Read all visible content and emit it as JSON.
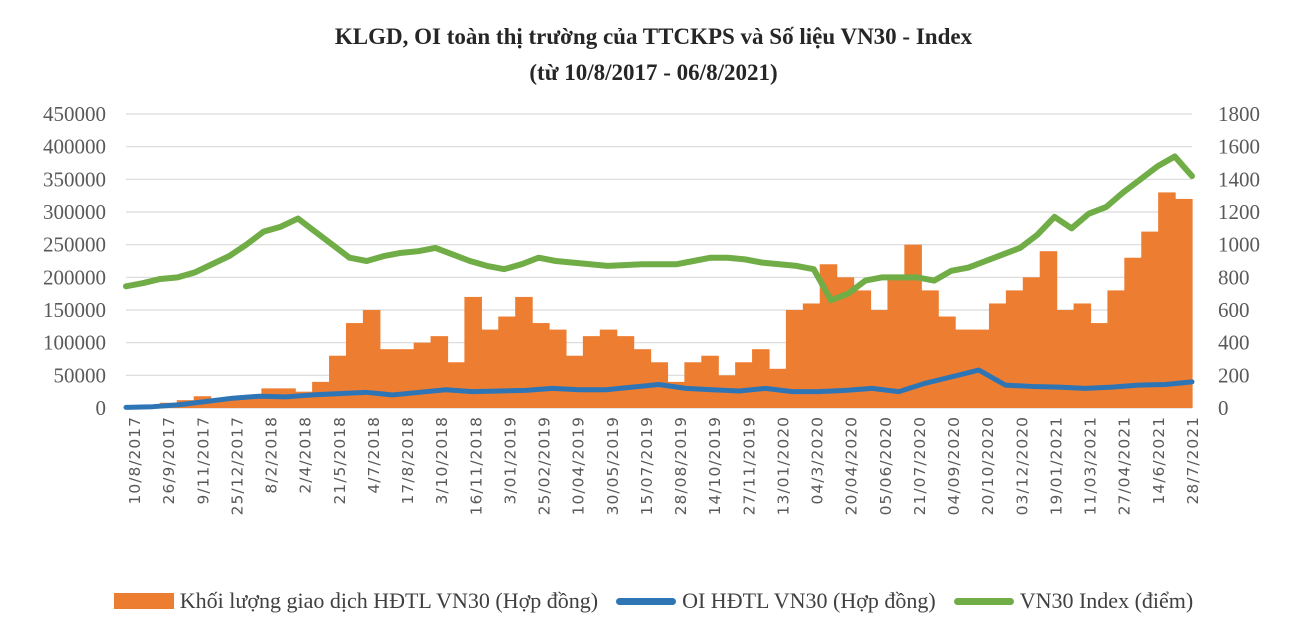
{
  "chart_data": {
    "type": "bar+line",
    "title": "KLGD,  OI toàn thị trường của TTCKPS  và  Số liệu VN30 - Index",
    "subtitle": "(từ 10/8/2017 - 06/8/2021)",
    "left_axis": {
      "min": 0,
      "max": 450000,
      "ticks": [
        "0",
        "50000",
        "100000",
        "150000",
        "200000",
        "250000",
        "300000",
        "350000",
        "400000",
        "450000"
      ]
    },
    "right_axis": {
      "min": 0,
      "max": 1800,
      "ticks": [
        "0",
        "200",
        "400",
        "600",
        "800",
        "1000",
        "1200",
        "1400",
        "1600",
        "1800"
      ]
    },
    "grid": true,
    "legend_position": "bottom",
    "x_ticks": [
      "10/8/2017",
      "26/9/2017",
      "9/11/2017",
      "25/12/2017",
      "8/2/2018",
      "2/4/2018",
      "21/5/2018",
      "4/7/2018",
      "17/8/2018",
      "3/10/2018",
      "16/11/2018",
      "3/01/2019",
      "25/02/2019",
      "10/04/2019",
      "30/05/2019",
      "15/07/2019",
      "28/08/2019",
      "14/10/2019",
      "27/11/2019",
      "13/01/2020",
      "04/3/2020",
      "20/04/2020",
      "05/06/2020",
      "21/07/2020",
      "04/09/2020",
      "20/10/2020",
      "03/12/2020",
      "19/01/2021",
      "11/03/2021",
      "27/04/2021",
      "14/6/2021",
      "28/7/2021"
    ],
    "series": [
      {
        "name": "Khối lượng giao  dịch HĐTL VN30 (Hợp đồng)",
        "type": "bar",
        "axis": "left",
        "color": "#ED7D31",
        "values": [
          3000,
          5000,
          8000,
          12000,
          18000,
          12000,
          15000,
          20000,
          30000,
          30000,
          25000,
          40000,
          80000,
          130000,
          150000,
          90000,
          90000,
          100000,
          110000,
          70000,
          170000,
          120000,
          140000,
          170000,
          130000,
          120000,
          80000,
          110000,
          120000,
          110000,
          90000,
          70000,
          40000,
          70000,
          80000,
          50000,
          70000,
          90000,
          60000,
          150000,
          160000,
          220000,
          200000,
          180000,
          150000,
          200000,
          250000,
          180000,
          140000,
          120000,
          120000,
          160000,
          180000,
          200000,
          240000,
          150000,
          160000,
          130000,
          180000,
          230000,
          270000,
          330000,
          320000
        ]
      },
      {
        "name": "OI HĐTL VN30 (Hợp đồng)",
        "type": "line",
        "axis": "left",
        "color": "#2E75B6",
        "values": [
          1000,
          2000,
          5000,
          10000,
          15000,
          18000,
          17000,
          20000,
          22000,
          24000,
          20000,
          24000,
          28000,
          25000,
          26000,
          27000,
          30000,
          28000,
          28000,
          32000,
          36000,
          30000,
          28000,
          26000,
          30000,
          25000,
          25000,
          27000,
          30000,
          25000,
          38000,
          48000,
          58000,
          35000,
          33000,
          32000,
          30000,
          32000,
          35000,
          36000,
          40000
        ]
      },
      {
        "name": "VN30 Index (điểm)",
        "type": "line",
        "axis": "right",
        "color": "#70AD47",
        "values": [
          745,
          765,
          790,
          800,
          830,
          880,
          930,
          1000,
          1080,
          1110,
          1160,
          1080,
          1000,
          920,
          900,
          930,
          950,
          960,
          980,
          940,
          900,
          870,
          850,
          880,
          920,
          900,
          890,
          880,
          870,
          875,
          880,
          880,
          880,
          900,
          920,
          920,
          910,
          890,
          880,
          870,
          850,
          660,
          700,
          780,
          800,
          800,
          800,
          780,
          840,
          860,
          900,
          940,
          980,
          1060,
          1170,
          1100,
          1190,
          1230,
          1320,
          1400,
          1480,
          1540,
          1420
        ]
      }
    ]
  }
}
